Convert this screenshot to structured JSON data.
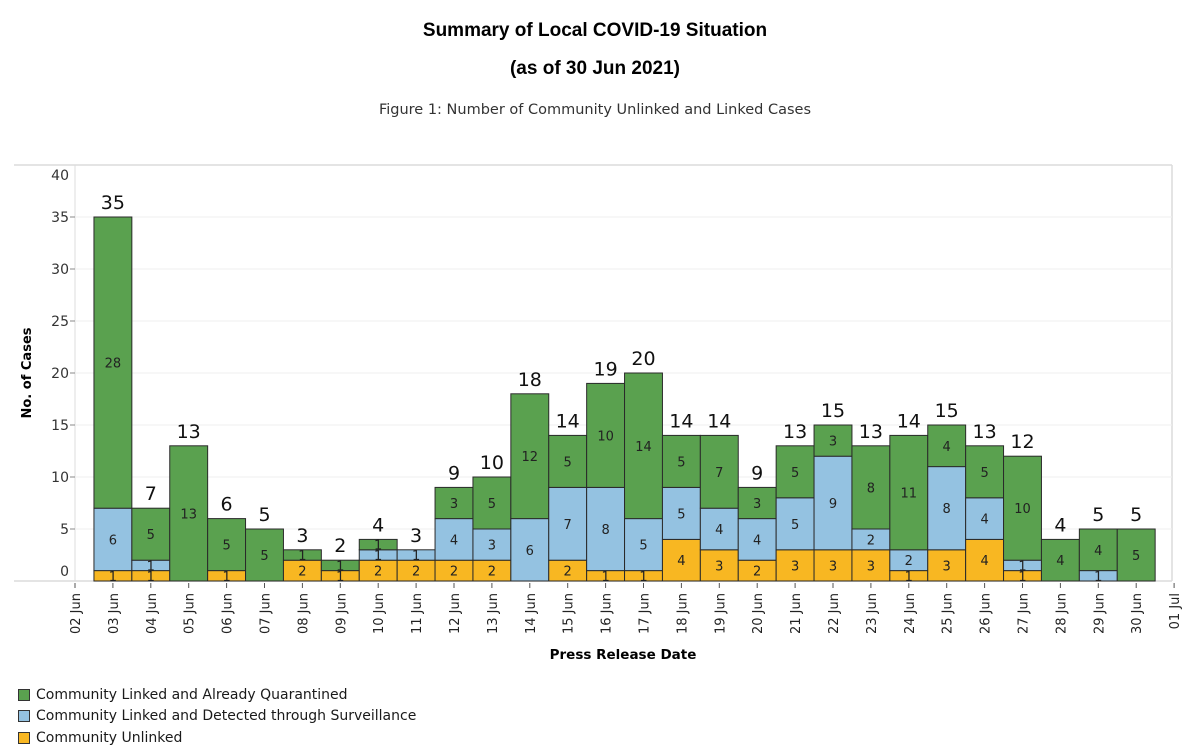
{
  "header": {
    "title": "Summary of Local COVID-19 Situation",
    "date_line": "(as of 30 Jun 2021)",
    "figure_caption": "Figure 1: Number of Community Unlinked and Linked Cases"
  },
  "colors": {
    "quarantined": "#5aa14f",
    "surveillance": "#94c2e1",
    "unlinked": "#f8b722",
    "bar_border": "#2a2a2a",
    "grid": "#efefef",
    "frame": "#dcdcdc"
  },
  "legend": [
    {
      "label": "Community Linked and Already Quarantined",
      "series": "quarantined"
    },
    {
      "label": "Community Linked and Detected through Surveillance",
      "series": "surveillance"
    },
    {
      "label": "Community Unlinked",
      "series": "unlinked"
    }
  ],
  "chart_data": {
    "type": "bar",
    "stacked": true,
    "title": "Figure 1: Number of Community Unlinked and Linked Cases",
    "xlabel": "Press Release Date",
    "ylabel": "No. of Cases",
    "ylim": [
      0,
      40
    ],
    "yticks": [
      0,
      5,
      10,
      15,
      20,
      25,
      30,
      35,
      40
    ],
    "grid": true,
    "legend_position": "bottom-left",
    "x_tick_labels": [
      "02 Jun",
      "03 Jun",
      "04 Jun",
      "05 Jun",
      "06 Jun",
      "07 Jun",
      "08 Jun",
      "09 Jun",
      "10 Jun",
      "11 Jun",
      "12 Jun",
      "13 Jun",
      "14 Jun",
      "15 Jun",
      "16 Jun",
      "17 Jun",
      "18 Jun",
      "19 Jun",
      "20 Jun",
      "21 Jun",
      "22 Jun",
      "23 Jun",
      "24 Jun",
      "25 Jun",
      "26 Jun",
      "27 Jun",
      "28 Jun",
      "29 Jun",
      "30 Jun",
      "01 Jul"
    ],
    "categories": [
      "03 Jun",
      "04 Jun",
      "05 Jun",
      "06 Jun",
      "07 Jun",
      "08 Jun",
      "09 Jun",
      "10 Jun",
      "11 Jun",
      "12 Jun",
      "13 Jun",
      "14 Jun",
      "15 Jun",
      "16 Jun",
      "17 Jun",
      "18 Jun",
      "19 Jun",
      "20 Jun",
      "21 Jun",
      "22 Jun",
      "23 Jun",
      "24 Jun",
      "25 Jun",
      "26 Jun",
      "27 Jun",
      "28 Jun",
      "29 Jun",
      "30 Jun"
    ],
    "series": [
      {
        "name": "Community Unlinked",
        "key": "unlinked",
        "values": [
          1,
          1,
          0,
          1,
          0,
          2,
          1,
          2,
          2,
          2,
          2,
          0,
          2,
          1,
          1,
          4,
          3,
          2,
          3,
          3,
          3,
          1,
          3,
          4,
          1,
          0,
          0,
          0
        ]
      },
      {
        "name": "Community Linked and Detected through Surveillance",
        "key": "surveillance",
        "values": [
          6,
          1,
          0,
          0,
          0,
          0,
          0,
          1,
          1,
          4,
          3,
          6,
          7,
          8,
          5,
          5,
          4,
          4,
          5,
          9,
          2,
          2,
          8,
          4,
          1,
          0,
          1,
          0
        ]
      },
      {
        "name": "Community Linked and Already Quarantined",
        "key": "quarantined",
        "values": [
          28,
          5,
          13,
          5,
          5,
          1,
          1,
          1,
          0,
          3,
          5,
          12,
          5,
          10,
          14,
          5,
          7,
          3,
          5,
          3,
          8,
          11,
          4,
          5,
          10,
          4,
          4,
          5
        ]
      }
    ],
    "totals": [
      35,
      7,
      13,
      6,
      5,
      3,
      2,
      4,
      3,
      9,
      10,
      18,
      14,
      19,
      20,
      14,
      14,
      9,
      13,
      15,
      13,
      14,
      15,
      13,
      12,
      4,
      5,
      5
    ]
  }
}
